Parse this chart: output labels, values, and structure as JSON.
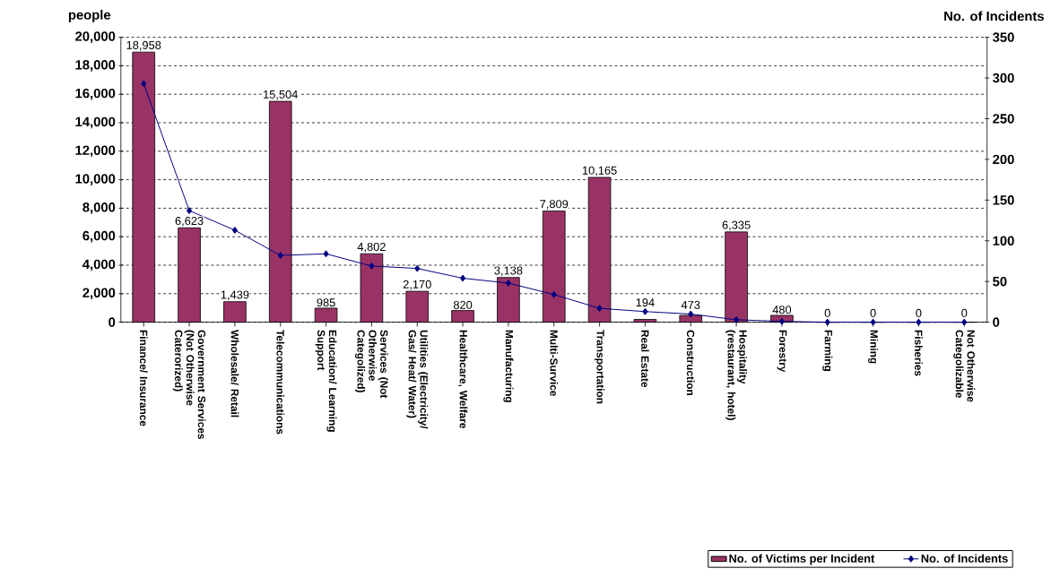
{
  "chart_data": {
    "type": "bar",
    "ylabel": "people",
    "y2label": "No. of Incidents",
    "categories": [
      "Finance/ Insurance",
      "Government Services (Not Otherwise Caterorized)",
      "Wholesale/ Retail",
      "Telecommunications",
      "Education/ Learning Support",
      "Services (Not Otherwise Categolized)",
      "Utilities (Electricity/ Gas/ Heat/ Water)",
      "Healthcare, Welfare",
      "Manufacturing",
      "Multi-Survice",
      "Transportation",
      "Real Estate",
      "Construction",
      "Hospitality (restaurant, hotel)",
      "Forestry",
      "Farming",
      "Mining",
      "Fisheries",
      "Not Otherwise Categolizable"
    ],
    "series": [
      {
        "name": "No. of Victims per Incident",
        "color": "#993366",
        "values": [
          18958,
          6623,
          1439,
          15504,
          985,
          4802,
          2170,
          820,
          3138,
          7809,
          10165,
          194,
          473,
          6335,
          480,
          0,
          0,
          0,
          0
        ],
        "value_labels": [
          "18,958",
          "6,623",
          "1,439",
          "15,504",
          "985",
          "4,802",
          "2,170",
          "820",
          "3,138",
          "7,809",
          "10,165",
          "194",
          "473",
          "6,335",
          "480",
          "0",
          "0",
          "0",
          "0"
        ]
      },
      {
        "name": "No. of Incidents",
        "type": "line",
        "axis": "y2",
        "color": "#000080",
        "values": [
          293,
          137,
          113,
          82,
          84,
          69,
          66,
          54,
          48,
          34,
          17,
          13,
          10,
          3,
          1,
          0,
          0,
          0,
          0
        ]
      }
    ],
    "ylim": [
      0,
      20000
    ],
    "yticks": [
      {
        "value": 0,
        "label": "0"
      },
      {
        "value": 2000,
        "label": "2,000"
      },
      {
        "value": 4000,
        "label": "4,000"
      },
      {
        "value": 6000,
        "label": "6,000"
      },
      {
        "value": 8000,
        "label": "8,000"
      },
      {
        "value": 10000,
        "label": "10,000"
      },
      {
        "value": 12000,
        "label": "12,000"
      },
      {
        "value": 14000,
        "label": "14,000"
      },
      {
        "value": 16000,
        "label": "16,000"
      },
      {
        "value": 18000,
        "label": "18,000"
      },
      {
        "value": 20000,
        "label": "20,000"
      }
    ],
    "y2lim": [
      0,
      350
    ],
    "y2ticks": [
      0,
      50,
      100,
      150,
      200,
      250,
      300,
      350
    ],
    "grid": "y",
    "legend": "bottom right",
    "marker": "diamond",
    "line_style": "solid"
  }
}
